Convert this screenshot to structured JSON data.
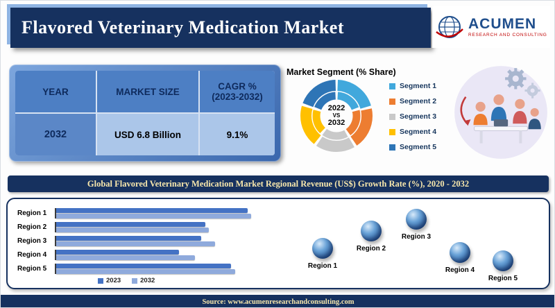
{
  "page": {
    "accent_navy": "#16315f"
  },
  "header": {
    "title": "Flavored Veterinary Medication Market",
    "logo": {
      "brand": "ACUMEN",
      "tagline": "RESEARCH AND CONSULTING"
    }
  },
  "summary_table": {
    "columns": [
      "YEAR",
      "MARKET SIZE",
      "CAGR % (2023-2032)"
    ],
    "row": [
      "2032",
      "USD 6.8 Billion",
      "9.1%"
    ]
  },
  "segment_section": {
    "title": "Market Segment (% Share)",
    "center_lines": [
      "2022",
      "VS",
      "2032"
    ],
    "legend": [
      {
        "label": "Segment 1",
        "color": "#41A8DC"
      },
      {
        "label": "Segment 2",
        "color": "#ED7D31"
      },
      {
        "label": "Segment 3",
        "color": "#C9C9C9"
      },
      {
        "label": "Segment 4",
        "color": "#FFC000"
      },
      {
        "label": "Segment 5",
        "color": "#2E75B6"
      }
    ]
  },
  "banner": {
    "text": "Global Flavored Veterinary Medication Market Regional Revenue (US$) Growth Rate (%), 2020 - 2032"
  },
  "chart_data": [
    {
      "type": "pie",
      "subtype": "double-ring-donut",
      "title": "Market Segment (% Share)",
      "center_label": "2022 VS 2032",
      "categories": [
        "Segment 1",
        "Segment 2",
        "Segment 3",
        "Segment 4",
        "Segment 5"
      ],
      "colors": [
        "#41A8DC",
        "#ED7D31",
        "#C9C9C9",
        "#FFC000",
        "#2E75B6"
      ],
      "rings": [
        {
          "name": "2032",
          "values": [
            21,
            20,
            19,
            20,
            20
          ]
        },
        {
          "name": "2022",
          "values": [
            20,
            21,
            20,
            19,
            20
          ]
        }
      ],
      "legend_position": "right"
    },
    {
      "type": "bar",
      "orientation": "horizontal",
      "title": "Global Flavored Veterinary Medication Market Regional Revenue (US$) Growth Rate (%), 2020 - 2032",
      "categories": [
        "Region 1",
        "Region 2",
        "Region 3",
        "Region 4",
        "Region 5"
      ],
      "series": [
        {
          "name": "2023",
          "color": "#4472C4",
          "values": [
            95,
            74,
            72,
            61,
            87
          ]
        },
        {
          "name": "2032",
          "color": "#8FAADC",
          "values": [
            97,
            76,
            79,
            69,
            89
          ]
        }
      ],
      "xlim": [
        0,
        100
      ],
      "grid": false,
      "legend_position": "bottom"
    }
  ],
  "map_section": {
    "markers": [
      "Region 1",
      "Region 2",
      "Region 3",
      "Region 4",
      "Region 5"
    ],
    "sphere_color": "#2A5D9E"
  },
  "footer": {
    "source": "Source: www.acumenresearchandconsulting.com"
  }
}
